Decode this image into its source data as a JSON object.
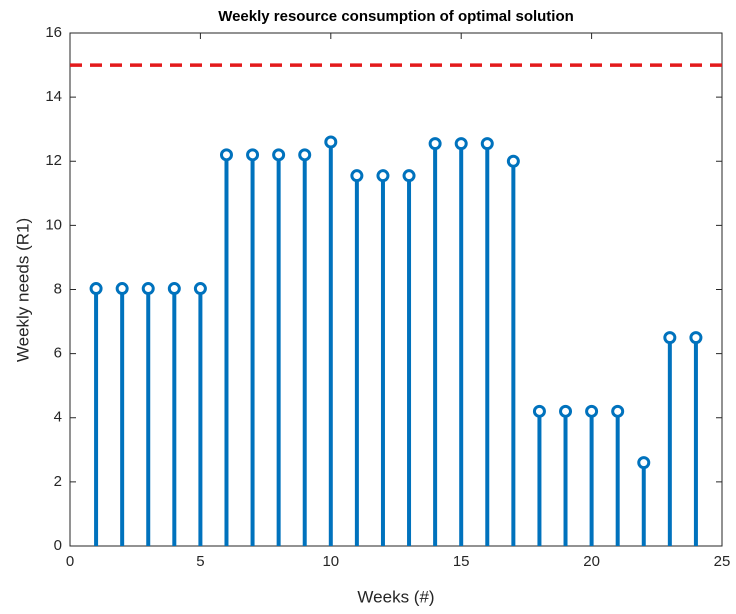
{
  "chart_data": {
    "type": "stem",
    "title": "Weekly resource consumption of optimal solution",
    "xlabel": "Weeks (#)",
    "ylabel": "Weekly needs (R1)",
    "x": [
      1,
      2,
      3,
      4,
      5,
      6,
      7,
      8,
      9,
      10,
      11,
      12,
      13,
      14,
      15,
      16,
      17,
      18,
      19,
      20,
      21,
      22,
      23,
      24
    ],
    "values": [
      8.03,
      8.03,
      8.03,
      8.03,
      8.03,
      12.2,
      12.2,
      12.2,
      12.2,
      12.6,
      11.55,
      11.55,
      11.55,
      12.55,
      12.55,
      12.55,
      12.0,
      4.2,
      4.2,
      4.2,
      4.2,
      2.6,
      6.5,
      6.5
    ],
    "color": "#0072bd",
    "threshold": 15,
    "threshold_color": "#e31a1c",
    "xlim": [
      0,
      25
    ],
    "xticks": [
      0,
      5,
      10,
      15,
      20,
      25
    ],
    "ylim": [
      0,
      16
    ],
    "yticks": [
      0,
      2,
      4,
      6,
      8,
      10,
      12,
      14,
      16
    ]
  }
}
